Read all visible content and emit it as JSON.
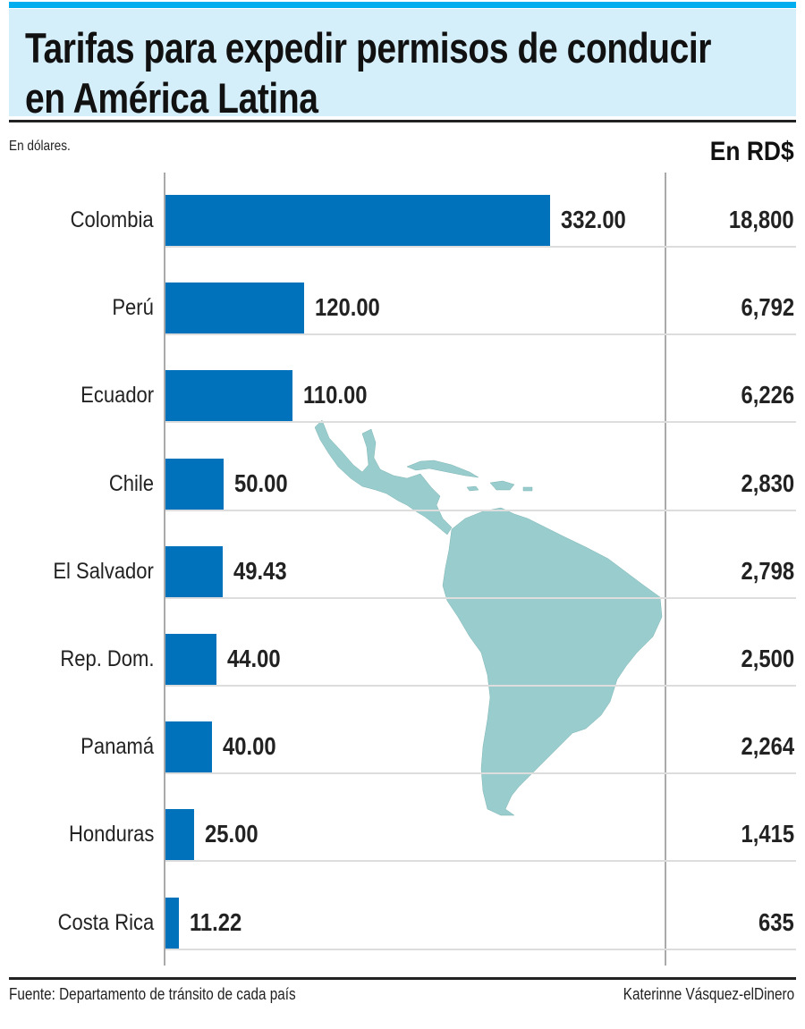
{
  "title_line1": "Tarifas para expedir permisos de conducir",
  "title_line2": "en América Latina",
  "unit_left": "En dólares.",
  "unit_right": "En RD$",
  "source": "Fuente: Departamento de tránsito de cada país",
  "credit": "Katerinne Vásquez-elDinero",
  "colors": {
    "bar": "#0072bc",
    "map": "#99cccc",
    "title_bg": "#d4eefa",
    "top_bar": "#00aeef"
  },
  "chart_data": {
    "type": "bar",
    "orientation": "horizontal",
    "title": "Tarifas para expedir permisos de conducir en América Latina",
    "xlabel": "En dólares.",
    "categories": [
      "Colombia",
      "Perú",
      "Ecuador",
      "Chile",
      "El Salvador",
      "Rep. Dom.",
      "Panamá",
      "Honduras",
      "Costa Rica"
    ],
    "values": [
      332.0,
      120.0,
      110.0,
      50.0,
      49.43,
      44.0,
      40.0,
      25.0,
      11.22
    ],
    "value_labels": [
      "332.00",
      "120.00",
      "110.00",
      "50.00",
      "49.43",
      "44.00",
      "40.00",
      "25.00",
      "11.22"
    ],
    "rd_values": [
      "18,800",
      "6,792",
      "6,226",
      "2,830",
      "2,798",
      "2,500",
      "2,264",
      "1,415",
      "635"
    ],
    "xlim": [
      0,
      332
    ]
  }
}
